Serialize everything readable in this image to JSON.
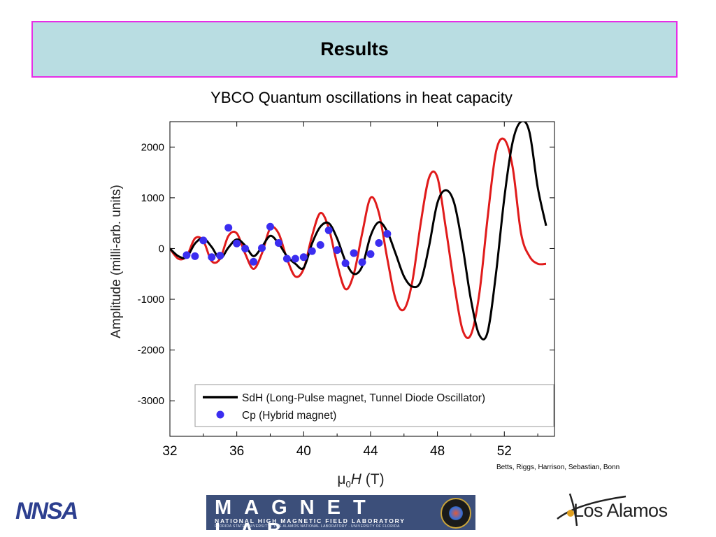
{
  "slide": {
    "title": "Results",
    "subtitle": "YBCO Quantum oscillations in heat capacity",
    "credit": "Betts, Riggs, Harrison, Sebastian, Bonn"
  },
  "logos": {
    "nnsa": "NNSA",
    "maglab_big": "MAGNET LAB",
    "maglab_mid": "NATIONAL HIGH MAGNETIC FIELD LABORATORY",
    "maglab_small": "FLORIDA STATE UNIVERSITY · LOS ALAMOS NATIONAL LABORATORY · UNIVERSITY OF FLORIDA",
    "los_alamos": "Los Alamos"
  },
  "colors": {
    "sdh": "#000000",
    "fit": "#e01b1b",
    "cp": "#3b2df0",
    "title_bg": "#b9dde2",
    "title_border": "#e62ee6"
  },
  "chart_data": {
    "type": "line",
    "xlabel_prefix": "μ",
    "xlabel_sub": "0",
    "xlabel_var": "H",
    "xlabel_unit": " (T)",
    "ylabel": "Amplitude  (milli-arb. units)",
    "xlim": [
      32,
      55
    ],
    "ylim": [
      -3700,
      2500
    ],
    "xticks": [
      32,
      36,
      40,
      44,
      48,
      52
    ],
    "yticks": [
      2000,
      1000,
      0,
      -1000,
      -2000,
      -3000
    ],
    "legend_position": "bottom",
    "series": [
      {
        "name": "SdH (Long-Pulse magnet, Tunnel Diode Oscillator)",
        "kind": "line",
        "x": [
          32.0,
          32.5,
          33.0,
          33.5,
          34.0,
          34.5,
          35.0,
          35.5,
          36.0,
          36.5,
          37.0,
          37.5,
          38.0,
          38.5,
          39.0,
          39.5,
          40.0,
          40.5,
          41.0,
          41.5,
          42.0,
          42.5,
          43.0,
          43.5,
          44.0,
          44.5,
          45.0,
          45.5,
          46.0,
          46.5,
          47.0,
          47.5,
          48.0,
          48.5,
          49.0,
          49.5,
          50.0,
          50.5,
          51.0,
          51.5,
          52.0,
          52.5,
          53.0,
          53.5,
          54.0,
          54.5
        ],
        "y": [
          0,
          -150,
          -170,
          100,
          200,
          30,
          -200,
          20,
          180,
          60,
          -150,
          30,
          250,
          100,
          -150,
          -300,
          -380,
          100,
          430,
          500,
          200,
          -250,
          -500,
          -350,
          250,
          520,
          330,
          -100,
          -550,
          -750,
          -650,
          50,
          900,
          1150,
          900,
          50,
          -1000,
          -1700,
          -1650,
          -500,
          1000,
          2100,
          2500,
          2300,
          1200,
          450
        ]
      },
      {
        "name": "",
        "kind": "line",
        "x": [
          32.0,
          32.5,
          33.0,
          33.5,
          34.0,
          34.5,
          35.0,
          35.5,
          36.0,
          36.5,
          37.0,
          37.5,
          38.0,
          38.5,
          39.0,
          39.5,
          40.0,
          40.5,
          41.0,
          41.5,
          42.0,
          42.5,
          43.0,
          43.5,
          44.0,
          44.5,
          45.0,
          45.5,
          46.0,
          46.5,
          47.0,
          47.5,
          48.0,
          48.5,
          49.0,
          49.5,
          50.0,
          50.5,
          51.0,
          51.5,
          52.0,
          52.5,
          53.0,
          53.5,
          54.0,
          54.5
        ],
        "y": [
          0,
          -200,
          -150,
          200,
          150,
          -250,
          -200,
          250,
          300,
          -100,
          -400,
          -100,
          400,
          300,
          -200,
          -550,
          -400,
          250,
          700,
          400,
          -300,
          -800,
          -500,
          300,
          1000,
          700,
          -200,
          -1000,
          -1200,
          -650,
          500,
          1400,
          1400,
          400,
          -700,
          -1600,
          -1700,
          -900,
          600,
          1900,
          2150,
          1600,
          300,
          -150,
          -300,
          -300
        ]
      },
      {
        "name": "Cp (Hybrid magnet)",
        "kind": "scatter",
        "x": [
          33.0,
          33.5,
          34.0,
          34.5,
          35.0,
          35.5,
          36.0,
          36.5,
          37.0,
          37.5,
          38.0,
          38.5,
          39.0,
          39.5,
          40.0,
          40.5,
          41.0,
          41.5,
          42.0,
          42.5,
          43.0,
          43.5,
          44.0,
          44.5,
          45.0
        ],
        "y": [
          -130,
          -150,
          160,
          -170,
          -140,
          410,
          100,
          0,
          -260,
          10,
          430,
          110,
          -200,
          -200,
          -170,
          -50,
          70,
          360,
          -30,
          -290,
          -90,
          -270,
          -110,
          110,
          290
        ]
      }
    ]
  }
}
